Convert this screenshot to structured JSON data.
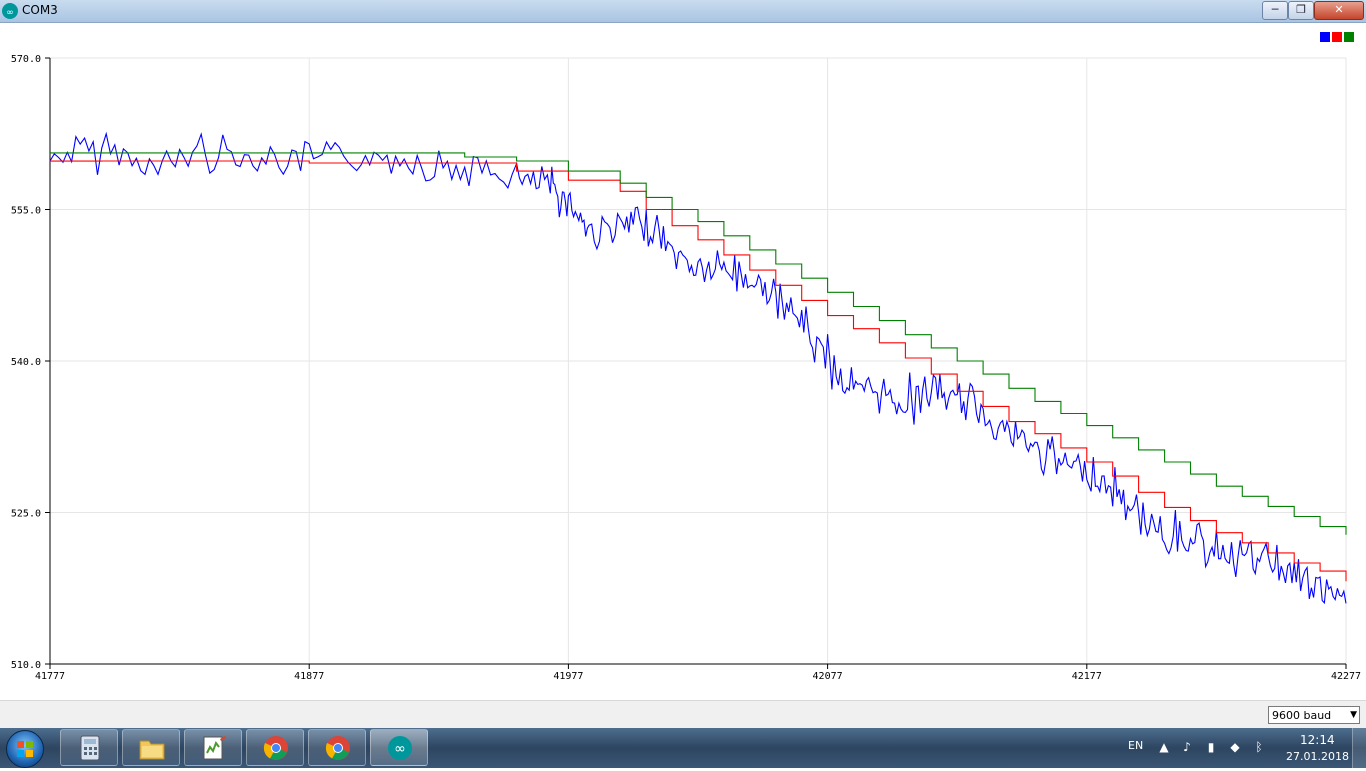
{
  "window": {
    "title": "COM3",
    "min_label": "─",
    "max_label": "❐",
    "close_label": "✕"
  },
  "legend": {
    "colors": [
      "#0000ff",
      "#ff0000",
      "#008000"
    ]
  },
  "chart_data": {
    "type": "line",
    "xlim": [
      41777,
      42277
    ],
    "ylim": [
      510.0,
      570.0
    ],
    "x_ticks": [
      "41777",
      "41877",
      "41977",
      "42077",
      "42177",
      "42277"
    ],
    "y_ticks": [
      "510.0",
      "525.0",
      "540.0",
      "555.0",
      "570.0"
    ],
    "grid": true,
    "legend_position": "top-right",
    "series": [
      {
        "color": "#0000ff",
        "x": [
          41777,
          41797,
          41817,
          41837,
          41857,
          41877,
          41897,
          41917,
          41937,
          41957,
          41970,
          41977,
          41985,
          41997,
          42007,
          42017,
          42027,
          42037,
          42047,
          42057,
          42067,
          42077,
          42087,
          42097,
          42107,
          42117,
          42127,
          42137,
          42147,
          42157,
          42167,
          42177,
          42187,
          42197,
          42207,
          42217,
          42227,
          42237,
          42247,
          42257,
          42267,
          42277
        ],
        "y": [
          560,
          561,
          559,
          561,
          560,
          560,
          560,
          560,
          559,
          558,
          557,
          556,
          553,
          553,
          554,
          551,
          549,
          549,
          548,
          546,
          544,
          540,
          537,
          537,
          536,
          537,
          536,
          535,
          533,
          531,
          530,
          529,
          527,
          525,
          523,
          522,
          521,
          521,
          520,
          519,
          517,
          516
        ]
      },
      {
        "color": "#ff0000",
        "x": [
          41777,
          41797,
          41817,
          41837,
          41857,
          41877,
          41897,
          41917,
          41937,
          41957,
          41977,
          41997,
          42007,
          42017,
          42027,
          42037,
          42047,
          42057,
          42067,
          42077,
          42087,
          42097,
          42107,
          42117,
          42127,
          42137,
          42147,
          42157,
          42167,
          42177,
          42187,
          42197,
          42207,
          42217,
          42227,
          42237,
          42247,
          42257,
          42267,
          42277
        ],
        "y": [
          559.8,
          559.8,
          559.8,
          559.8,
          559.8,
          559.6,
          559.6,
          559.6,
          559.6,
          558.8,
          557.9,
          556.8,
          555.0,
          553.4,
          552.0,
          550.5,
          549.0,
          547.5,
          546.0,
          544.5,
          543.2,
          541.8,
          540.3,
          538.7,
          537.0,
          535.5,
          534.0,
          532.8,
          531.4,
          530.0,
          528.6,
          527.0,
          525.5,
          524.2,
          523.0,
          522.0,
          521.0,
          520.0,
          519.2,
          518.2
        ]
      },
      {
        "color": "#008000",
        "x": [
          41777,
          41797,
          41817,
          41837,
          41857,
          41877,
          41897,
          41917,
          41937,
          41957,
          41977,
          41997,
          42007,
          42017,
          42027,
          42037,
          42047,
          42057,
          42067,
          42077,
          42087,
          42097,
          42107,
          42117,
          42127,
          42137,
          42147,
          42157,
          42167,
          42177,
          42187,
          42197,
          42207,
          42217,
          42227,
          42237,
          42247,
          42257,
          42267,
          42277
        ],
        "y": [
          560.6,
          560.6,
          560.6,
          560.6,
          560.6,
          560.6,
          560.6,
          560.6,
          560.2,
          559.8,
          558.8,
          557.6,
          556.2,
          555.0,
          553.8,
          552.4,
          551.0,
          549.6,
          548.2,
          546.8,
          545.4,
          544.0,
          542.6,
          541.3,
          540.0,
          538.7,
          537.3,
          536.0,
          534.8,
          533.6,
          532.4,
          531.2,
          530.0,
          528.8,
          527.6,
          526.6,
          525.6,
          524.6,
          523.6,
          522.8
        ]
      }
    ]
  },
  "status": {
    "baud": "9600 baud"
  },
  "taskbar": {
    "items": [
      {
        "icon": "calculator-icon"
      },
      {
        "icon": "folder-icon"
      },
      {
        "icon": "notepad-plus-icon"
      },
      {
        "icon": "chrome-icon"
      },
      {
        "icon": "chrome-icon"
      },
      {
        "icon": "arduino-icon"
      }
    ],
    "lang": "EN",
    "time": "12:14",
    "date": "27.01.2018"
  }
}
